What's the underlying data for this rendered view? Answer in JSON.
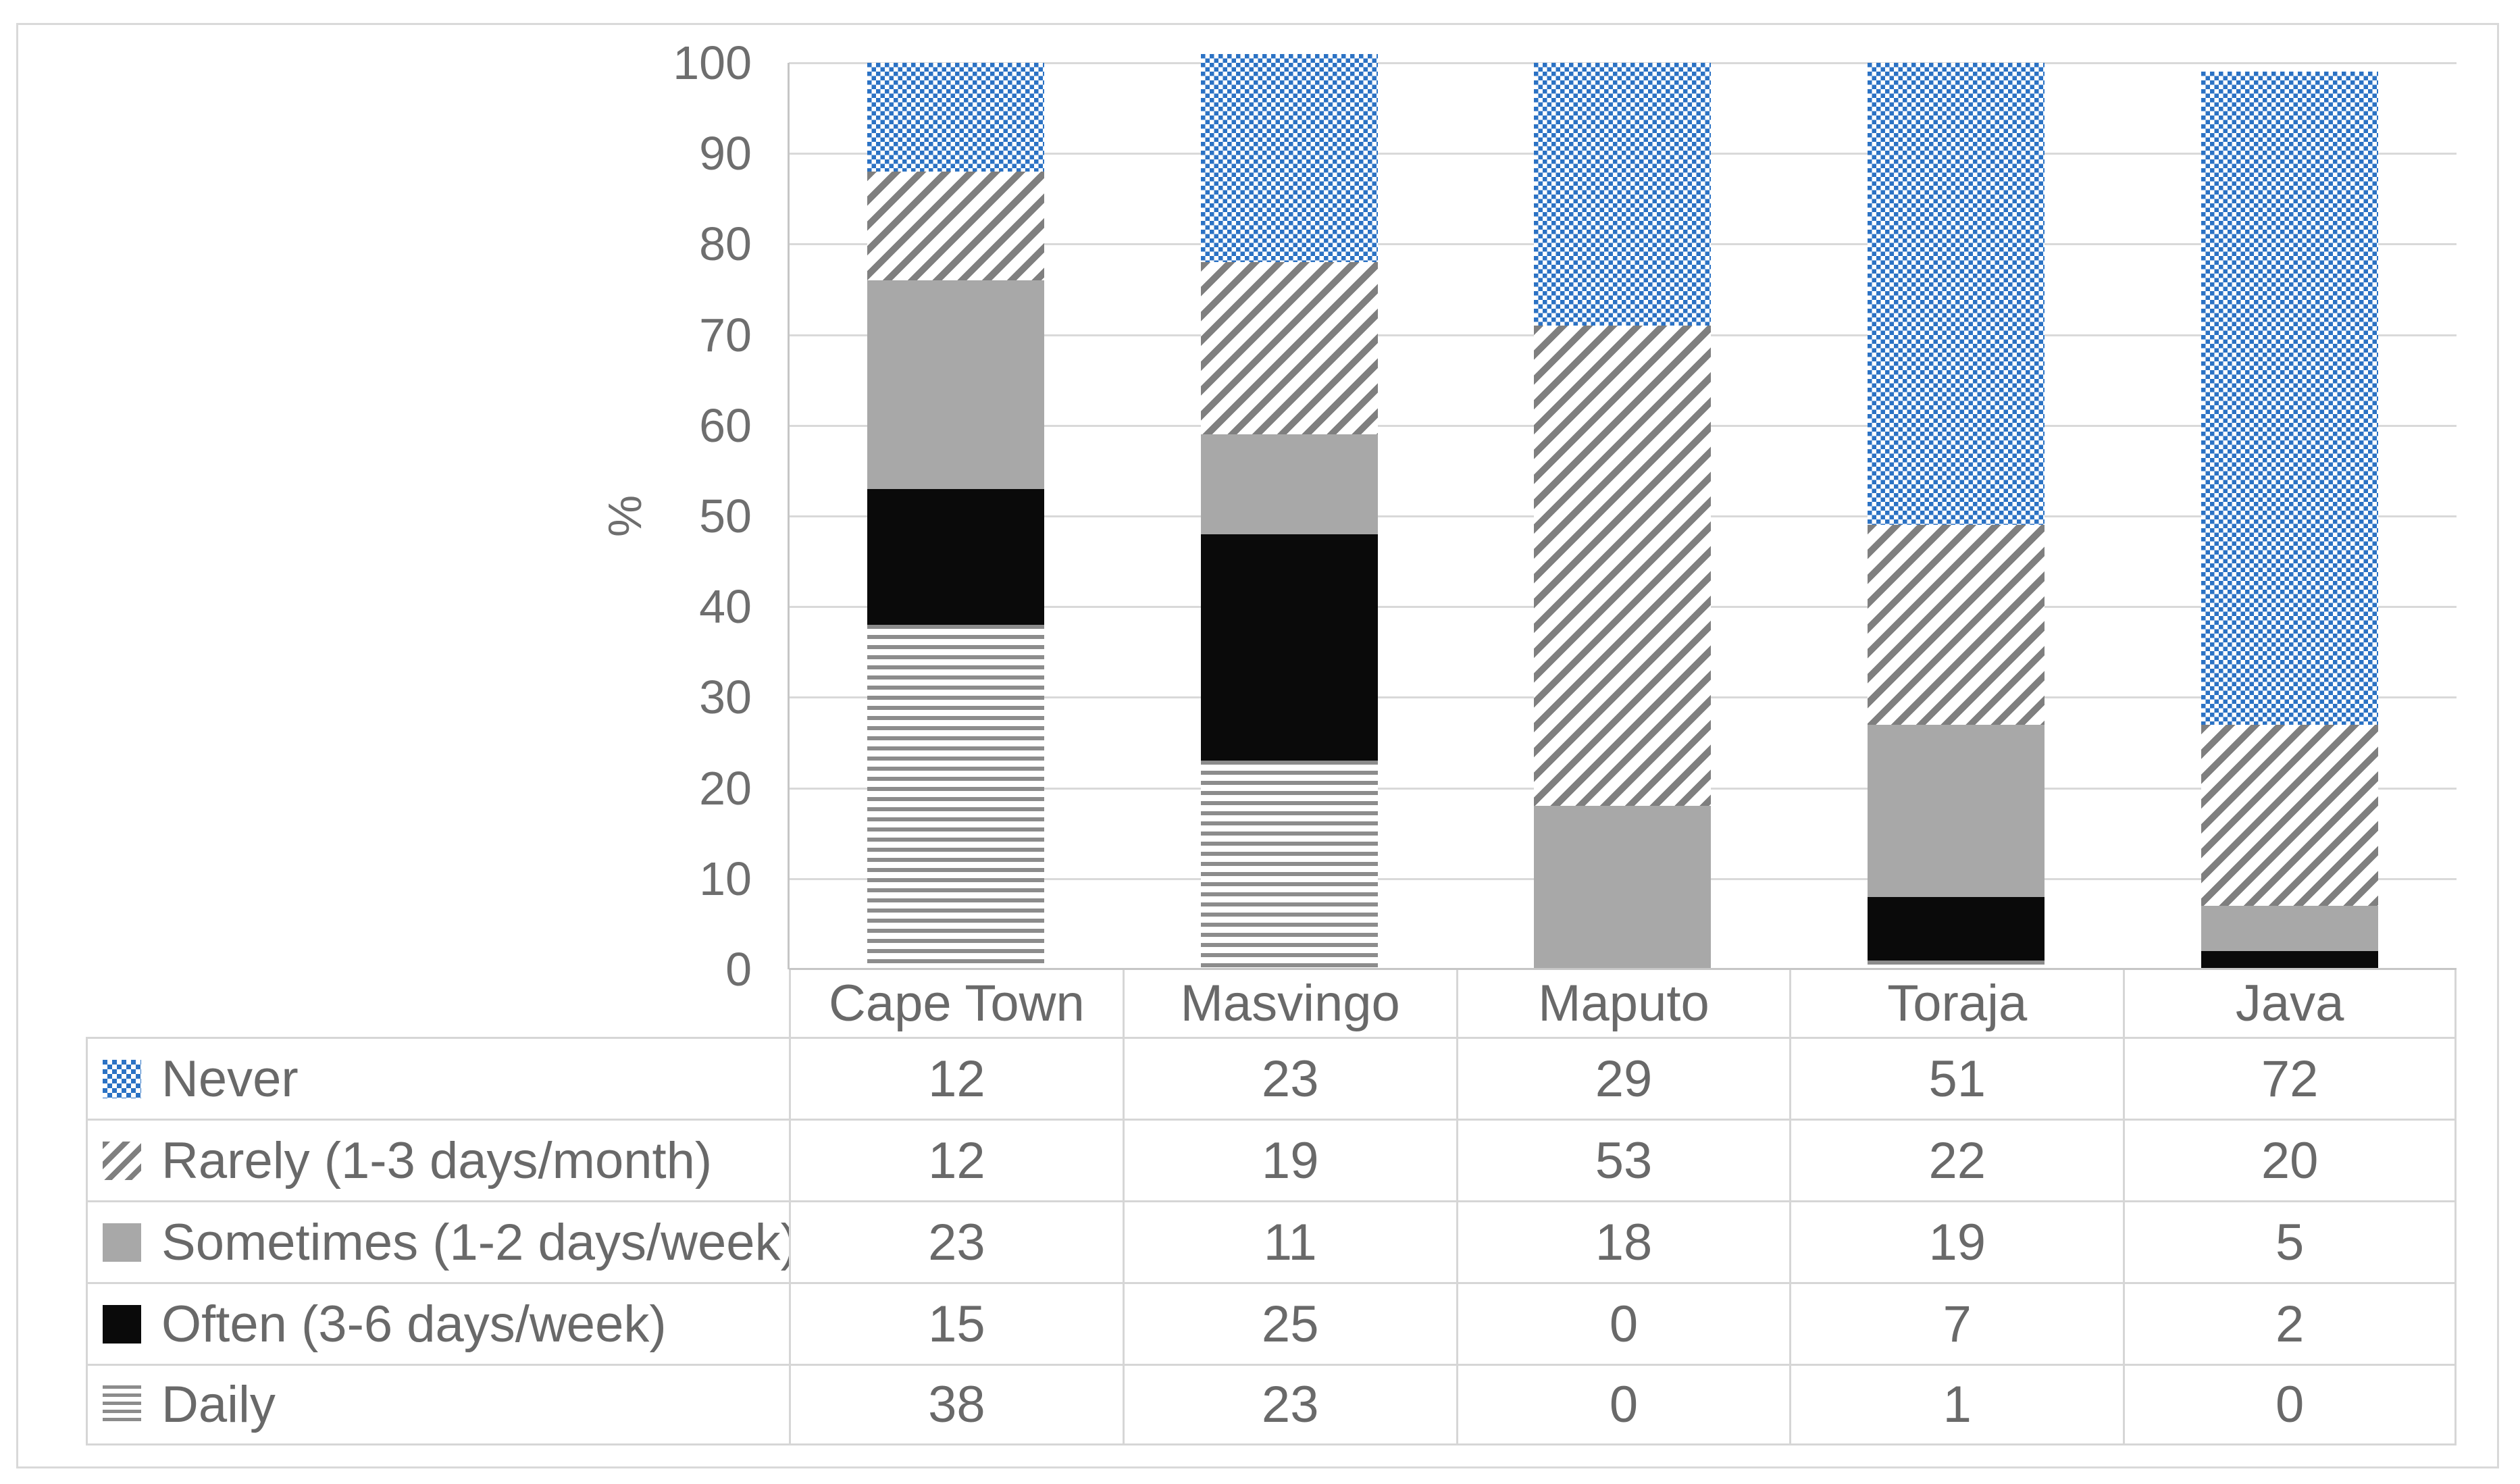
{
  "axes": {
    "y_title": "%",
    "y_ticks": [
      "100",
      "90",
      "80",
      "70",
      "60",
      "50",
      "40",
      "30",
      "20",
      "10",
      "0"
    ]
  },
  "chart_data": {
    "type": "bar",
    "stacked": true,
    "title": "",
    "xlabel": "",
    "ylabel": "%",
    "ylim": [
      0,
      100
    ],
    "ytick_step": 10,
    "grid": true,
    "legend_position": "table-left-column",
    "categories": [
      "Cape Town",
      "Masvingo",
      "Maputo",
      "Toraja",
      "Java"
    ],
    "series": [
      {
        "name": "Never",
        "pattern": "blue-dotted",
        "color": "#2b72c4",
        "values": [
          12,
          23,
          29,
          51,
          72
        ]
      },
      {
        "name": "Rarely (1-3 days/month)",
        "pattern": "gray-diagonal-stripes",
        "color": "#7f7f7f",
        "values": [
          12,
          19,
          53,
          22,
          20
        ]
      },
      {
        "name": "Sometimes (1-2 days/week)",
        "pattern": "solid-gray",
        "color": "#a8a8a8",
        "values": [
          23,
          11,
          18,
          19,
          5
        ]
      },
      {
        "name": "Often (3-6 days/week)",
        "pattern": "solid-black",
        "color": "#0a0a0a",
        "values": [
          15,
          25,
          0,
          7,
          2
        ]
      },
      {
        "name": "Daily",
        "pattern": "gray-horizontal-stripes",
        "color": "#8c8c8c",
        "values": [
          38,
          23,
          0,
          1,
          0
        ]
      }
    ]
  },
  "style": {
    "text_color": "#696969",
    "grid_color": "#d9d9d9",
    "axis_color": "#c6c6c6",
    "table_border_color": "#d6d6d6",
    "frame_border_color": "#d9d9d9",
    "background": "#ffffff"
  }
}
